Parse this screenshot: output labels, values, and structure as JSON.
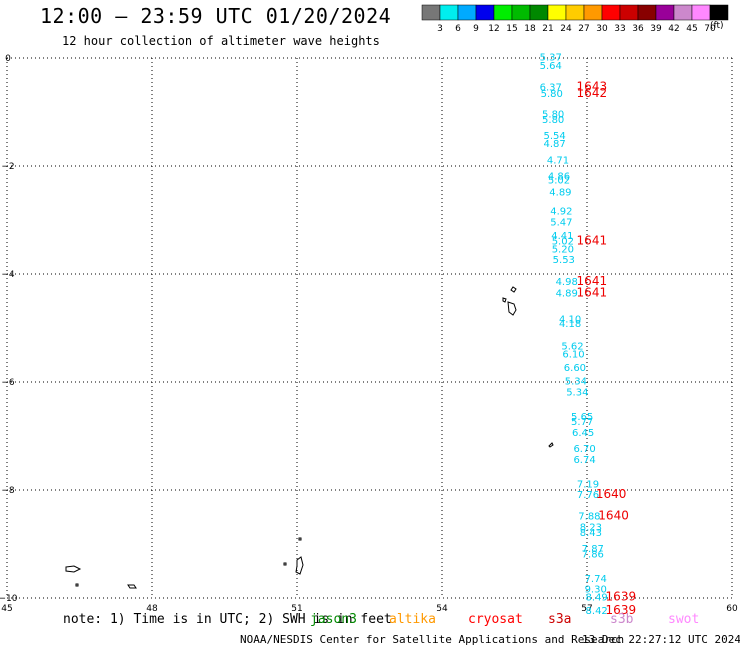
{
  "header": {
    "title": "12:00 – 23:59 UTC 01/20/2024",
    "subtitle": "12 hour collection of altimeter wave heights"
  },
  "colorbar": {
    "colors": [
      "#777777",
      "#00eeee",
      "#00aaff",
      "#0000ee",
      "#00ee00",
      "#00bb00",
      "#008800",
      "#ffff00",
      "#ffcc00",
      "#ff9900",
      "#ff0000",
      "#cc0000",
      "#880000",
      "#990099",
      "#cc88cc",
      "#ff88ff",
      "#000000"
    ],
    "labels": [
      "3",
      "6",
      "9",
      "12",
      "15",
      "18",
      "21",
      "24",
      "27",
      "30",
      "33",
      "36",
      "39",
      "42",
      "45",
      "70"
    ],
    "unit": "(ft)"
  },
  "footer": {
    "note": "note:  1) Time is in UTC; 2) SWH is in feet",
    "credit": "NOAA/NESDIS Center for Satellite Applications and Research",
    "generated": "13 Dec 22:27:12 UTC 2024"
  },
  "satellites": [
    {
      "name": "jason3",
      "color": "#008800"
    },
    {
      "name": "altika",
      "color": "#ff9900"
    },
    {
      "name": "cryosat",
      "color": "#ff0000"
    },
    {
      "name": "s3a",
      "color": "#cc0000"
    },
    {
      "name": "s3b",
      "color": "#cc88cc"
    },
    {
      "name": "swot",
      "color": "#ff88ff"
    }
  ],
  "chart_data": {
    "type": "scatter",
    "xlim": [
      45,
      60
    ],
    "ylim": [
      -10,
      0
    ],
    "xticks": [
      "45",
      "48",
      "51",
      "54",
      "57",
      "60"
    ],
    "yticks": [
      "0",
      "−2",
      "−4",
      "−6",
      "−8",
      "−10"
    ],
    "grid": true,
    "wave_heights": {
      "color": "#00ccee",
      "points": [
        {
          "x": 56.25,
          "y": -0.05,
          "v": "5.37"
        },
        {
          "x": 56.25,
          "y": -0.2,
          "v": "5.64"
        },
        {
          "x": 56.25,
          "y": -0.6,
          "v": "6.37"
        },
        {
          "x": 56.27,
          "y": -0.72,
          "v": "5.80"
        },
        {
          "x": 56.3,
          "y": -1.1,
          "v": "5.80"
        },
        {
          "x": 56.3,
          "y": -1.2,
          "v": "5.80"
        },
        {
          "x": 56.33,
          "y": -1.5,
          "v": "5.54"
        },
        {
          "x": 56.33,
          "y": -1.65,
          "v": "4.87"
        },
        {
          "x": 56.4,
          "y": -1.95,
          "v": "4.71"
        },
        {
          "x": 56.42,
          "y": -2.25,
          "v": "4.86"
        },
        {
          "x": 56.42,
          "y": -2.32,
          "v": "5.02"
        },
        {
          "x": 56.45,
          "y": -2.55,
          "v": "4.89"
        },
        {
          "x": 56.47,
          "y": -2.9,
          "v": "4.92"
        },
        {
          "x": 56.47,
          "y": -3.1,
          "v": "5.47"
        },
        {
          "x": 56.49,
          "y": -3.35,
          "v": "4.41"
        },
        {
          "x": 56.5,
          "y": -3.45,
          "v": "5.02"
        },
        {
          "x": 56.5,
          "y": -3.6,
          "v": "5.20"
        },
        {
          "x": 56.52,
          "y": -3.8,
          "v": "5.53"
        },
        {
          "x": 56.58,
          "y": -4.2,
          "v": "4.98"
        },
        {
          "x": 56.58,
          "y": -4.42,
          "v": "4.89"
        },
        {
          "x": 56.65,
          "y": -4.9,
          "v": "4.10"
        },
        {
          "x": 56.65,
          "y": -4.98,
          "v": "4.18"
        },
        {
          "x": 56.7,
          "y": -5.4,
          "v": "5.62"
        },
        {
          "x": 56.72,
          "y": -5.55,
          "v": "6.10"
        },
        {
          "x": 56.75,
          "y": -5.8,
          "v": "6.60"
        },
        {
          "x": 56.77,
          "y": -6.05,
          "v": "5.34"
        },
        {
          "x": 56.8,
          "y": -6.25,
          "v": "5.34"
        },
        {
          "x": 56.9,
          "y": -6.7,
          "v": "5.65"
        },
        {
          "x": 56.9,
          "y": -6.8,
          "v": "5.77"
        },
        {
          "x": 56.92,
          "y": -7.0,
          "v": "6.45"
        },
        {
          "x": 56.95,
          "y": -7.3,
          "v": "6.70"
        },
        {
          "x": 56.95,
          "y": -7.5,
          "v": "6.74"
        },
        {
          "x": 57.02,
          "y": -7.95,
          "v": "7.19"
        },
        {
          "x": 57.02,
          "y": -8.15,
          "v": "7.76"
        },
        {
          "x": 57.05,
          "y": -8.55,
          "v": "7.88"
        },
        {
          "x": 57.08,
          "y": -8.75,
          "v": "8.23"
        },
        {
          "x": 57.08,
          "y": -8.85,
          "v": "8.43"
        },
        {
          "x": 57.12,
          "y": -9.15,
          "v": "7.87"
        },
        {
          "x": 57.12,
          "y": -9.25,
          "v": "7.86"
        },
        {
          "x": 57.18,
          "y": -9.7,
          "v": "7.74"
        },
        {
          "x": 57.18,
          "y": -9.9,
          "v": "9.30"
        },
        {
          "x": 57.2,
          "y": -10.05,
          "v": "8.49"
        },
        {
          "x": 57.2,
          "y": -10.3,
          "v": "8.42"
        }
      ]
    },
    "time_labels": {
      "color": "#ee0000",
      "points": [
        {
          "x": 57.1,
          "y": -0.6,
          "v": "1643"
        },
        {
          "x": 57.1,
          "y": -0.72,
          "v": "1642"
        },
        {
          "x": 57.1,
          "y": -3.45,
          "v": "1641"
        },
        {
          "x": 57.1,
          "y": -4.2,
          "v": "1641"
        },
        {
          "x": 57.1,
          "y": -4.42,
          "v": "1641"
        },
        {
          "x": 57.5,
          "y": -8.15,
          "v": "1640"
        },
        {
          "x": 57.55,
          "y": -8.55,
          "v": "1640"
        },
        {
          "x": 57.7,
          "y": -10.05,
          "v": "1639"
        },
        {
          "x": 57.7,
          "y": -10.3,
          "v": "1639"
        }
      ]
    }
  }
}
